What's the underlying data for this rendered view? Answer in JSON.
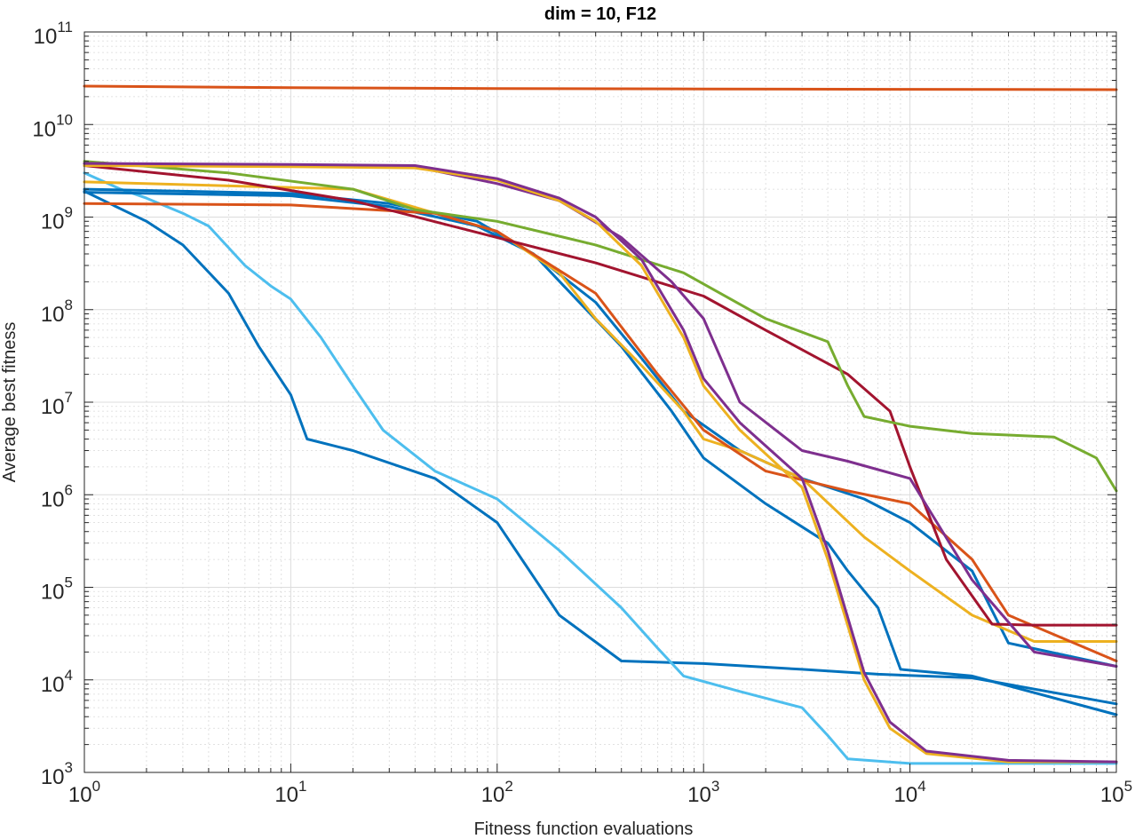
{
  "chart_data": {
    "type": "line",
    "title": "dim = 10,  F12",
    "xlabel": "Fitness function evaluations",
    "ylabel": "Average best fitness",
    "xscale": "log",
    "yscale": "log",
    "xlim": [
      1,
      100000
    ],
    "ylim": [
      1000,
      100000000000
    ],
    "grid": true,
    "minor_grid": true,
    "x_ticks": [
      {
        "base": "10",
        "exp": "0"
      },
      {
        "base": "10",
        "exp": "1"
      },
      {
        "base": "10",
        "exp": "2"
      },
      {
        "base": "10",
        "exp": "3"
      },
      {
        "base": "10",
        "exp": "4"
      },
      {
        "base": "10",
        "exp": "5"
      }
    ],
    "y_ticks": [
      {
        "base": "10",
        "exp": "3"
      },
      {
        "base": "10",
        "exp": "4"
      },
      {
        "base": "10",
        "exp": "5"
      },
      {
        "base": "10",
        "exp": "6"
      },
      {
        "base": "10",
        "exp": "7"
      },
      {
        "base": "10",
        "exp": "8"
      },
      {
        "base": "10",
        "exp": "9"
      },
      {
        "base": "10",
        "exp": "10"
      },
      {
        "base": "10",
        "exp": "11"
      }
    ],
    "series": [
      {
        "name": "series-1",
        "color": "#D95319",
        "x": [
          1,
          10,
          100,
          1000,
          10000,
          100000
        ],
        "y": [
          26000000000.0,
          25000000000.0,
          24500000000.0,
          24200000000.0,
          24000000000.0,
          23800000000.0
        ]
      },
      {
        "name": "series-2",
        "color": "#0072BD",
        "x": [
          1,
          2,
          3,
          5,
          7,
          10,
          12,
          20,
          50,
          100,
          200,
          400,
          1000,
          3000,
          7000,
          20000,
          100000
        ],
        "y": [
          1900000000.0,
          900000000.0,
          500000000.0,
          150000000.0,
          40000000.0,
          12000000.0,
          4000000.0,
          3000000.0,
          1500000.0,
          500000.0,
          50000.0,
          16000.0,
          15000.0,
          13000.0,
          11500.0,
          10500.0,
          5500.0
        ]
      },
      {
        "name": "series-3",
        "color": "#4DBEEE",
        "x": [
          1,
          1.5,
          2,
          3,
          4,
          6,
          8,
          10,
          14,
          20,
          28,
          50,
          100,
          200,
          400,
          600,
          800,
          1500,
          3000,
          4000,
          5000,
          10000,
          100000
        ],
        "y": [
          3000000000.0,
          2000000000.0,
          1600000000.0,
          1100000000.0,
          800000000.0,
          300000000.0,
          180000000.0,
          130000000.0,
          50000000.0,
          15000000.0,
          5000000.0,
          1800000.0,
          900000.0,
          250000.0,
          60000.0,
          22000.0,
          11000.0,
          7500.0,
          5000.0,
          2500.0,
          1400.0,
          1250.0,
          1250.0
        ]
      },
      {
        "name": "series-4",
        "color": "#0072BD",
        "x": [
          1,
          10,
          30,
          80,
          150,
          250,
          400,
          700,
          1000,
          2000,
          4000,
          5000,
          7000,
          9000,
          20000,
          100000
        ],
        "y": [
          2000000000.0,
          1800000000.0,
          1400000000.0,
          900000000.0,
          400000000.0,
          120000000.0,
          40000000.0,
          8000000.0,
          2500000.0,
          800000.0,
          300000.0,
          150000.0,
          60000.0,
          13000.0,
          11000.0,
          4200.0
        ]
      },
      {
        "name": "series-5",
        "color": "#0072BD",
        "x": [
          1,
          10,
          30,
          80,
          150,
          300,
          500,
          800,
          1500,
          3000,
          6000,
          10000,
          20000,
          30000,
          100000
        ],
        "y": [
          1850000000.0,
          1700000000.0,
          1300000000.0,
          800000000.0,
          400000000.0,
          120000000.0,
          30000000.0,
          8000000.0,
          3000000.0,
          1500000.0,
          900000.0,
          500000.0,
          150000.0,
          25000.0,
          14000.0
        ]
      },
      {
        "name": "series-6",
        "color": "#EDB120",
        "x": [
          1,
          20,
          100,
          200,
          300,
          500,
          800,
          1000,
          1500,
          3000,
          6000,
          10000,
          20000,
          40000,
          100000
        ],
        "y": [
          2400000000.0,
          2000000000.0,
          700000000.0,
          250000000.0,
          80000000.0,
          25000000.0,
          8000000.0,
          4000000.0,
          3000000.0,
          1500000.0,
          350000.0,
          150000.0,
          50000.0,
          26000.0,
          26000.0
        ]
      },
      {
        "name": "series-7",
        "color": "#D95319",
        "x": [
          1,
          10,
          50,
          100,
          300,
          600,
          1000,
          2000,
          5000,
          10000,
          20000,
          30000,
          100000
        ],
        "y": [
          1400000000.0,
          1350000000.0,
          1100000000.0,
          700000000.0,
          150000000.0,
          20000000.0,
          5000000.0,
          1800000.0,
          1100000.0,
          800000.0,
          200000.0,
          50000.0,
          16000.0
        ]
      },
      {
        "name": "series-8",
        "color": "#A2142F",
        "x": [
          1,
          5,
          20,
          100,
          300,
          1000,
          2000,
          5000,
          8000,
          10000,
          15000,
          25000,
          40000,
          100000
        ],
        "y": [
          3600000000.0,
          2500000000.0,
          1500000000.0,
          600000000.0,
          320000000.0,
          140000000.0,
          60000000.0,
          20000000.0,
          8000000.0,
          2000000.0,
          200000.0,
          40000.0,
          39000.0,
          39000.0
        ]
      },
      {
        "name": "series-9",
        "color": "#77AC30",
        "x": [
          1,
          5,
          20,
          40,
          100,
          300,
          800,
          2000,
          4000,
          5000,
          6000,
          10000,
          20000,
          50000,
          80000,
          100000
        ],
        "y": [
          4000000000.0,
          3000000000.0,
          2000000000.0,
          1200000000.0,
          900000000.0,
          500000000.0,
          250000000.0,
          80000000.0,
          45000000.0,
          15000000.0,
          7000000.0,
          5500000.0,
          4600000.0,
          4200000.0,
          2500000.0,
          1100000.0
        ]
      },
      {
        "name": "series-10",
        "color": "#7E2F8E",
        "x": [
          1,
          10,
          40,
          100,
          200,
          400,
          700,
          1000,
          1500,
          3000,
          5000,
          10000,
          20000,
          40000,
          100000
        ],
        "y": [
          3800000000.0,
          3600000000.0,
          3500000000.0,
          2300000000.0,
          1500000000.0,
          600000000.0,
          200000000.0,
          80000000.0,
          10000000.0,
          3000000.0,
          2300000.0,
          1500000.0,
          120000.0,
          20000.0,
          14000.0
        ]
      },
      {
        "name": "series-11",
        "color": "#EDB120",
        "x": [
          1,
          10,
          40,
          100,
          200,
          300,
          500,
          800,
          1000,
          1500,
          3000,
          4000,
          6000,
          8000,
          12000,
          30000,
          100000
        ],
        "y": [
          3600000000.0,
          3500000000.0,
          3400000000.0,
          2500000000.0,
          1500000000.0,
          900000000.0,
          300000000.0,
          50000000.0,
          15000000.0,
          5000000.0,
          1200000.0,
          200000.0,
          10000.0,
          3000.0,
          1600.0,
          1300.0,
          1300.0
        ]
      },
      {
        "name": "series-12",
        "color": "#7E2F8E",
        "x": [
          1,
          10,
          40,
          100,
          200,
          300,
          500,
          800,
          1000,
          1500,
          3000,
          4000,
          6000,
          8000,
          12000,
          30000,
          100000
        ],
        "y": [
          3800000000.0,
          3700000000.0,
          3600000000.0,
          2600000000.0,
          1600000000.0,
          1000000000.0,
          350000000.0,
          60000000.0,
          18000000.0,
          6000000.0,
          1500000.0,
          250000.0,
          12000.0,
          3500.0,
          1700.0,
          1350.0,
          1300.0
        ]
      }
    ]
  }
}
